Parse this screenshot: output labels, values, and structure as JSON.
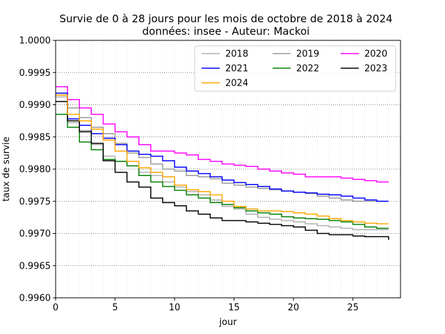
{
  "chart_data": {
    "type": "line",
    "step": true,
    "title": "Survie de 0 à 28 jours pour les mois de octobre de 2018 à 2024",
    "subtitle": "données: insee - Auteur: Mackoi",
    "xlabel": "jour",
    "ylabel": "taux de survie",
    "xlim": [
      0,
      29
    ],
    "ylim": [
      0.996,
      1.0
    ],
    "xticks": [
      0,
      5,
      10,
      15,
      20,
      25
    ],
    "xtick_labels": [
      "0",
      "5",
      "10",
      "15",
      "20",
      "25"
    ],
    "yticks": [
      0.996,
      0.9965,
      0.997,
      0.9975,
      0.998,
      0.9985,
      0.999,
      0.9995,
      1.0
    ],
    "ytick_labels": [
      "0.9960",
      "0.9965",
      "0.9970",
      "0.9975",
      "0.9980",
      "0.9985",
      "0.9990",
      "0.9995",
      "1.0000"
    ],
    "grid": {
      "x": "minor-dotted",
      "y": "major-dotted"
    },
    "legend_position": "top-right",
    "legend_columns": 3,
    "x": [
      0,
      1,
      2,
      3,
      4,
      5,
      6,
      7,
      8,
      9,
      10,
      11,
      12,
      13,
      14,
      15,
      16,
      17,
      18,
      19,
      20,
      21,
      22,
      23,
      24,
      25,
      26,
      27,
      28
    ],
    "series": [
      {
        "name": "2018",
        "color": "#b0b0b0",
        "values": [
          0.99912,
          0.99872,
          0.9986,
          0.99838,
          0.9982,
          0.99812,
          0.99805,
          0.99795,
          0.9979,
          0.9978,
          0.99772,
          0.99765,
          0.9976,
          0.99752,
          0.99742,
          0.99738,
          0.9973,
          0.99725,
          0.99722,
          0.9972,
          0.99718,
          0.99715,
          0.99712,
          0.9971,
          0.99708,
          0.99706,
          0.99706,
          0.99706,
          0.99706
        ]
      },
      {
        "name": "2019",
        "color": "#999999",
        "values": [
          0.99915,
          0.99895,
          0.9988,
          0.99865,
          0.99855,
          0.9984,
          0.99825,
          0.99818,
          0.99808,
          0.998,
          0.99797,
          0.9979,
          0.99788,
          0.99785,
          0.99778,
          0.99775,
          0.99772,
          0.9977,
          0.99768,
          0.99766,
          0.99764,
          0.99762,
          0.99758,
          0.99755,
          0.99752,
          0.9975,
          0.9975,
          0.9975,
          0.9975
        ]
      },
      {
        "name": "2020",
        "color": "#ff00ff",
        "values": [
          0.99928,
          0.99908,
          0.99895,
          0.99885,
          0.9987,
          0.99858,
          0.9985,
          0.99838,
          0.99828,
          0.99828,
          0.99825,
          0.99822,
          0.99815,
          0.99812,
          0.99808,
          0.99806,
          0.99804,
          0.998,
          0.99797,
          0.99794,
          0.99792,
          0.99788,
          0.99788,
          0.99788,
          0.99786,
          0.99784,
          0.99782,
          0.9978,
          0.9978
        ]
      },
      {
        "name": "2021",
        "color": "#0000ff",
        "values": [
          0.99918,
          0.99878,
          0.99868,
          0.99855,
          0.99848,
          0.99838,
          0.99828,
          0.99823,
          0.9982,
          0.99813,
          0.99803,
          0.99797,
          0.99793,
          0.99788,
          0.99783,
          0.99779,
          0.99776,
          0.99773,
          0.99769,
          0.99766,
          0.99764,
          0.99763,
          0.99761,
          0.9976,
          0.99758,
          0.99755,
          0.99752,
          0.9975,
          0.9975
        ]
      },
      {
        "name": "2022",
        "color": "#008000",
        "values": [
          0.99885,
          0.99865,
          0.99842,
          0.9983,
          0.99815,
          0.99812,
          0.99805,
          0.9979,
          0.9978,
          0.99773,
          0.99767,
          0.9976,
          0.99755,
          0.99748,
          0.99745,
          0.9974,
          0.99735,
          0.99732,
          0.9973,
          0.99726,
          0.99724,
          0.99723,
          0.99722,
          0.9972,
          0.99718,
          0.99714,
          0.9971,
          0.99708,
          0.99708
        ]
      },
      {
        "name": "2023",
        "color": "#000000",
        "values": [
          0.99905,
          0.99875,
          0.99858,
          0.9984,
          0.99813,
          0.99795,
          0.9978,
          0.99772,
          0.99755,
          0.99748,
          0.99743,
          0.99735,
          0.9973,
          0.99724,
          0.9972,
          0.9972,
          0.99718,
          0.99716,
          0.99714,
          0.99712,
          0.9971,
          0.99705,
          0.997,
          0.99698,
          0.99698,
          0.99696,
          0.99695,
          0.99695,
          0.9969
        ]
      },
      {
        "name": "2024",
        "color": "#ffa500",
        "values": [
          0.99915,
          0.99885,
          0.99875,
          0.99862,
          0.99845,
          0.99828,
          0.99812,
          0.99802,
          0.99795,
          0.99788,
          0.99775,
          0.99768,
          0.99765,
          0.9976,
          0.9975,
          0.99742,
          0.99738,
          0.99735,
          0.99735,
          0.99734,
          0.99732,
          0.9973,
          0.99727,
          0.99723,
          0.9972,
          0.99718,
          0.99716,
          0.99715,
          0.99715
        ]
      }
    ]
  }
}
